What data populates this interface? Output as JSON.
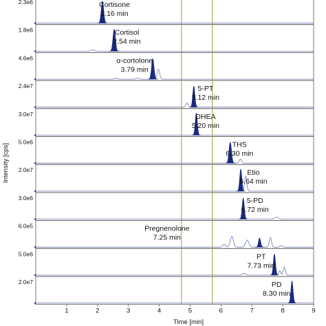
{
  "chart_data": {
    "type": "line",
    "xlabel": "Time [min]",
    "ylabel": "Intensity [cps]",
    "xlim": [
      0,
      9
    ],
    "x_ticks": [
      "1",
      "2",
      "3",
      "4",
      "5",
      "6",
      "7",
      "8",
      "9"
    ],
    "marker_lines_min": [
      4.72,
      5.72
    ],
    "colors": {
      "filled_peak": "#1a2a7c",
      "trace": "#6f78b0",
      "marker": "#9a9a3a",
      "axis": "#555555"
    },
    "panels": [
      {
        "ymax": "2.3e6",
        "label": "Cortisone",
        "time": "2.16 min",
        "rt": 2.16,
        "peaks": [
          {
            "t": 2.16,
            "h": 0.92,
            "w": 0.04,
            "fill": true
          }
        ]
      },
      {
        "ymax": "1.8e6",
        "label": "Cortisol",
        "time": "2.54 min",
        "rt": 2.54,
        "peaks": [
          {
            "t": 2.54,
            "h": 0.92,
            "w": 0.04,
            "fill": true
          },
          {
            "t": 1.85,
            "h": 0.06,
            "w": 0.05,
            "fill": false
          }
        ]
      },
      {
        "ymax": "4.6e6",
        "label": "α-cortolone",
        "time": "3.79 min",
        "rt": 3.79,
        "peaks": [
          {
            "t": 3.79,
            "h": 0.86,
            "w": 0.04,
            "fill": true
          },
          {
            "t": 3.97,
            "h": 0.42,
            "w": 0.04,
            "fill": false
          },
          {
            "t": 3.3,
            "h": 0.04,
            "w": 0.05,
            "fill": false
          },
          {
            "t": 2.6,
            "h": 0.03,
            "w": 0.05,
            "fill": false
          }
        ]
      },
      {
        "ymax": "2.4e7",
        "label": "5-PT",
        "time": "5.12 min",
        "rt": 5.12,
        "peaks": [
          {
            "t": 5.12,
            "h": 0.88,
            "w": 0.035,
            "fill": true
          },
          {
            "t": 4.9,
            "h": 0.18,
            "w": 0.035,
            "fill": false
          }
        ]
      },
      {
        "ymax": "3.0e7",
        "label": "DHEA",
        "time": "5.20 min",
        "rt": 5.2,
        "peaks": [
          {
            "t": 5.2,
            "h": 0.92,
            "w": 0.035,
            "fill": true
          }
        ]
      },
      {
        "ymax": "5.0e6",
        "label": "THS",
        "time": "6.30 min",
        "rt": 6.3,
        "peaks": [
          {
            "t": 6.3,
            "h": 0.88,
            "w": 0.04,
            "fill": true
          },
          {
            "t": 6.63,
            "h": 0.18,
            "w": 0.035,
            "fill": false
          }
        ]
      },
      {
        "ymax": "2.0e7",
        "label": "Etio",
        "time": "6.64 min",
        "rt": 6.64,
        "peaks": [
          {
            "t": 6.64,
            "h": 0.92,
            "w": 0.035,
            "fill": true
          },
          {
            "t": 6.8,
            "h": 0.62,
            "w": 0.035,
            "fill": false
          }
        ]
      },
      {
        "ymax": "3.0e6",
        "label": "5-PD",
        "time": "6.72 min",
        "rt": 6.72,
        "peaks": [
          {
            "t": 6.72,
            "h": 0.88,
            "w": 0.035,
            "fill": true
          },
          {
            "t": 7.8,
            "h": 0.08,
            "w": 0.06,
            "fill": false
          }
        ]
      },
      {
        "ymax": "6.0e5",
        "label": "Pregnenolone",
        "time": "7.25 min",
        "rt": 7.25,
        "peaks": [
          {
            "t": 7.25,
            "h": 0.38,
            "w": 0.035,
            "fill": true
          },
          {
            "t": 6.35,
            "h": 0.45,
            "w": 0.05,
            "fill": false
          },
          {
            "t": 6.85,
            "h": 0.3,
            "w": 0.05,
            "fill": false
          },
          {
            "t": 7.6,
            "h": 0.4,
            "w": 0.035,
            "fill": false
          },
          {
            "t": 6.1,
            "h": 0.12,
            "w": 0.04,
            "fill": false
          },
          {
            "t": 7.95,
            "h": 0.06,
            "w": 0.04,
            "fill": false
          }
        ]
      },
      {
        "ymax": "5.0e6",
        "label": "PT",
        "time": "7.73 min",
        "rt": 7.73,
        "peaks": [
          {
            "t": 7.73,
            "h": 0.88,
            "w": 0.035,
            "fill": true
          },
          {
            "t": 8.05,
            "h": 0.34,
            "w": 0.035,
            "fill": false
          },
          {
            "t": 6.75,
            "h": 0.08,
            "w": 0.04,
            "fill": false
          },
          {
            "t": 7.9,
            "h": 0.18,
            "w": 0.03,
            "fill": false
          }
        ]
      },
      {
        "ymax": "2.0e7",
        "label": "PD",
        "time": "8.30 min",
        "rt": 8.3,
        "peaks": [
          {
            "t": 8.3,
            "h": 0.92,
            "w": 0.035,
            "fill": true
          }
        ]
      }
    ]
  }
}
